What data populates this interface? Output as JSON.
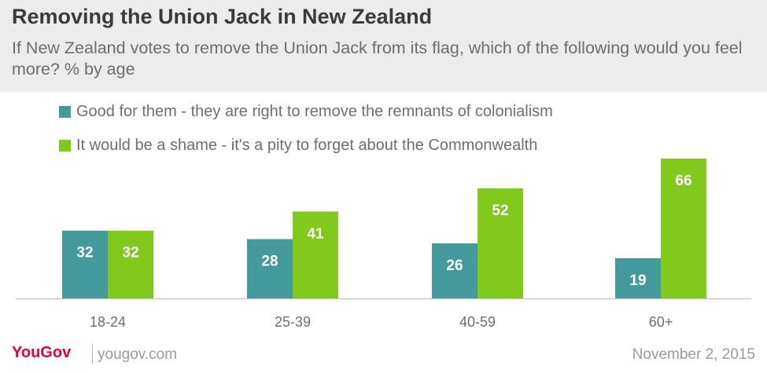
{
  "title": "Removing the Union Jack in New Zealand",
  "subtitle": "If New Zealand votes to remove the Union Jack from its flag, which of the following would you feel more? % by age",
  "colors": {
    "header_bg": "#ececec",
    "series_good": "#44999b",
    "series_shame": "#82c91e",
    "logo": "#e4003b"
  },
  "chart_data": {
    "type": "bar",
    "categories": [
      "18-24",
      "25-39",
      "40-59",
      "60+"
    ],
    "series": [
      {
        "name": "Good for them - they are right to remove the remnants of colonialism",
        "color": "#44999b",
        "values": [
          32,
          28,
          26,
          19
        ]
      },
      {
        "name": "It would be a shame - it's a pity to forget about the Commonwealth",
        "color": "#82c91e",
        "values": [
          32,
          41,
          52,
          66
        ]
      }
    ],
    "xlabel": "",
    "ylabel": "",
    "ylim": [
      0,
      66
    ],
    "grid": false,
    "legend": "top-left"
  },
  "footer": {
    "logo": "YouGov",
    "url": "yougov.com",
    "date": "November 2, 2015"
  }
}
